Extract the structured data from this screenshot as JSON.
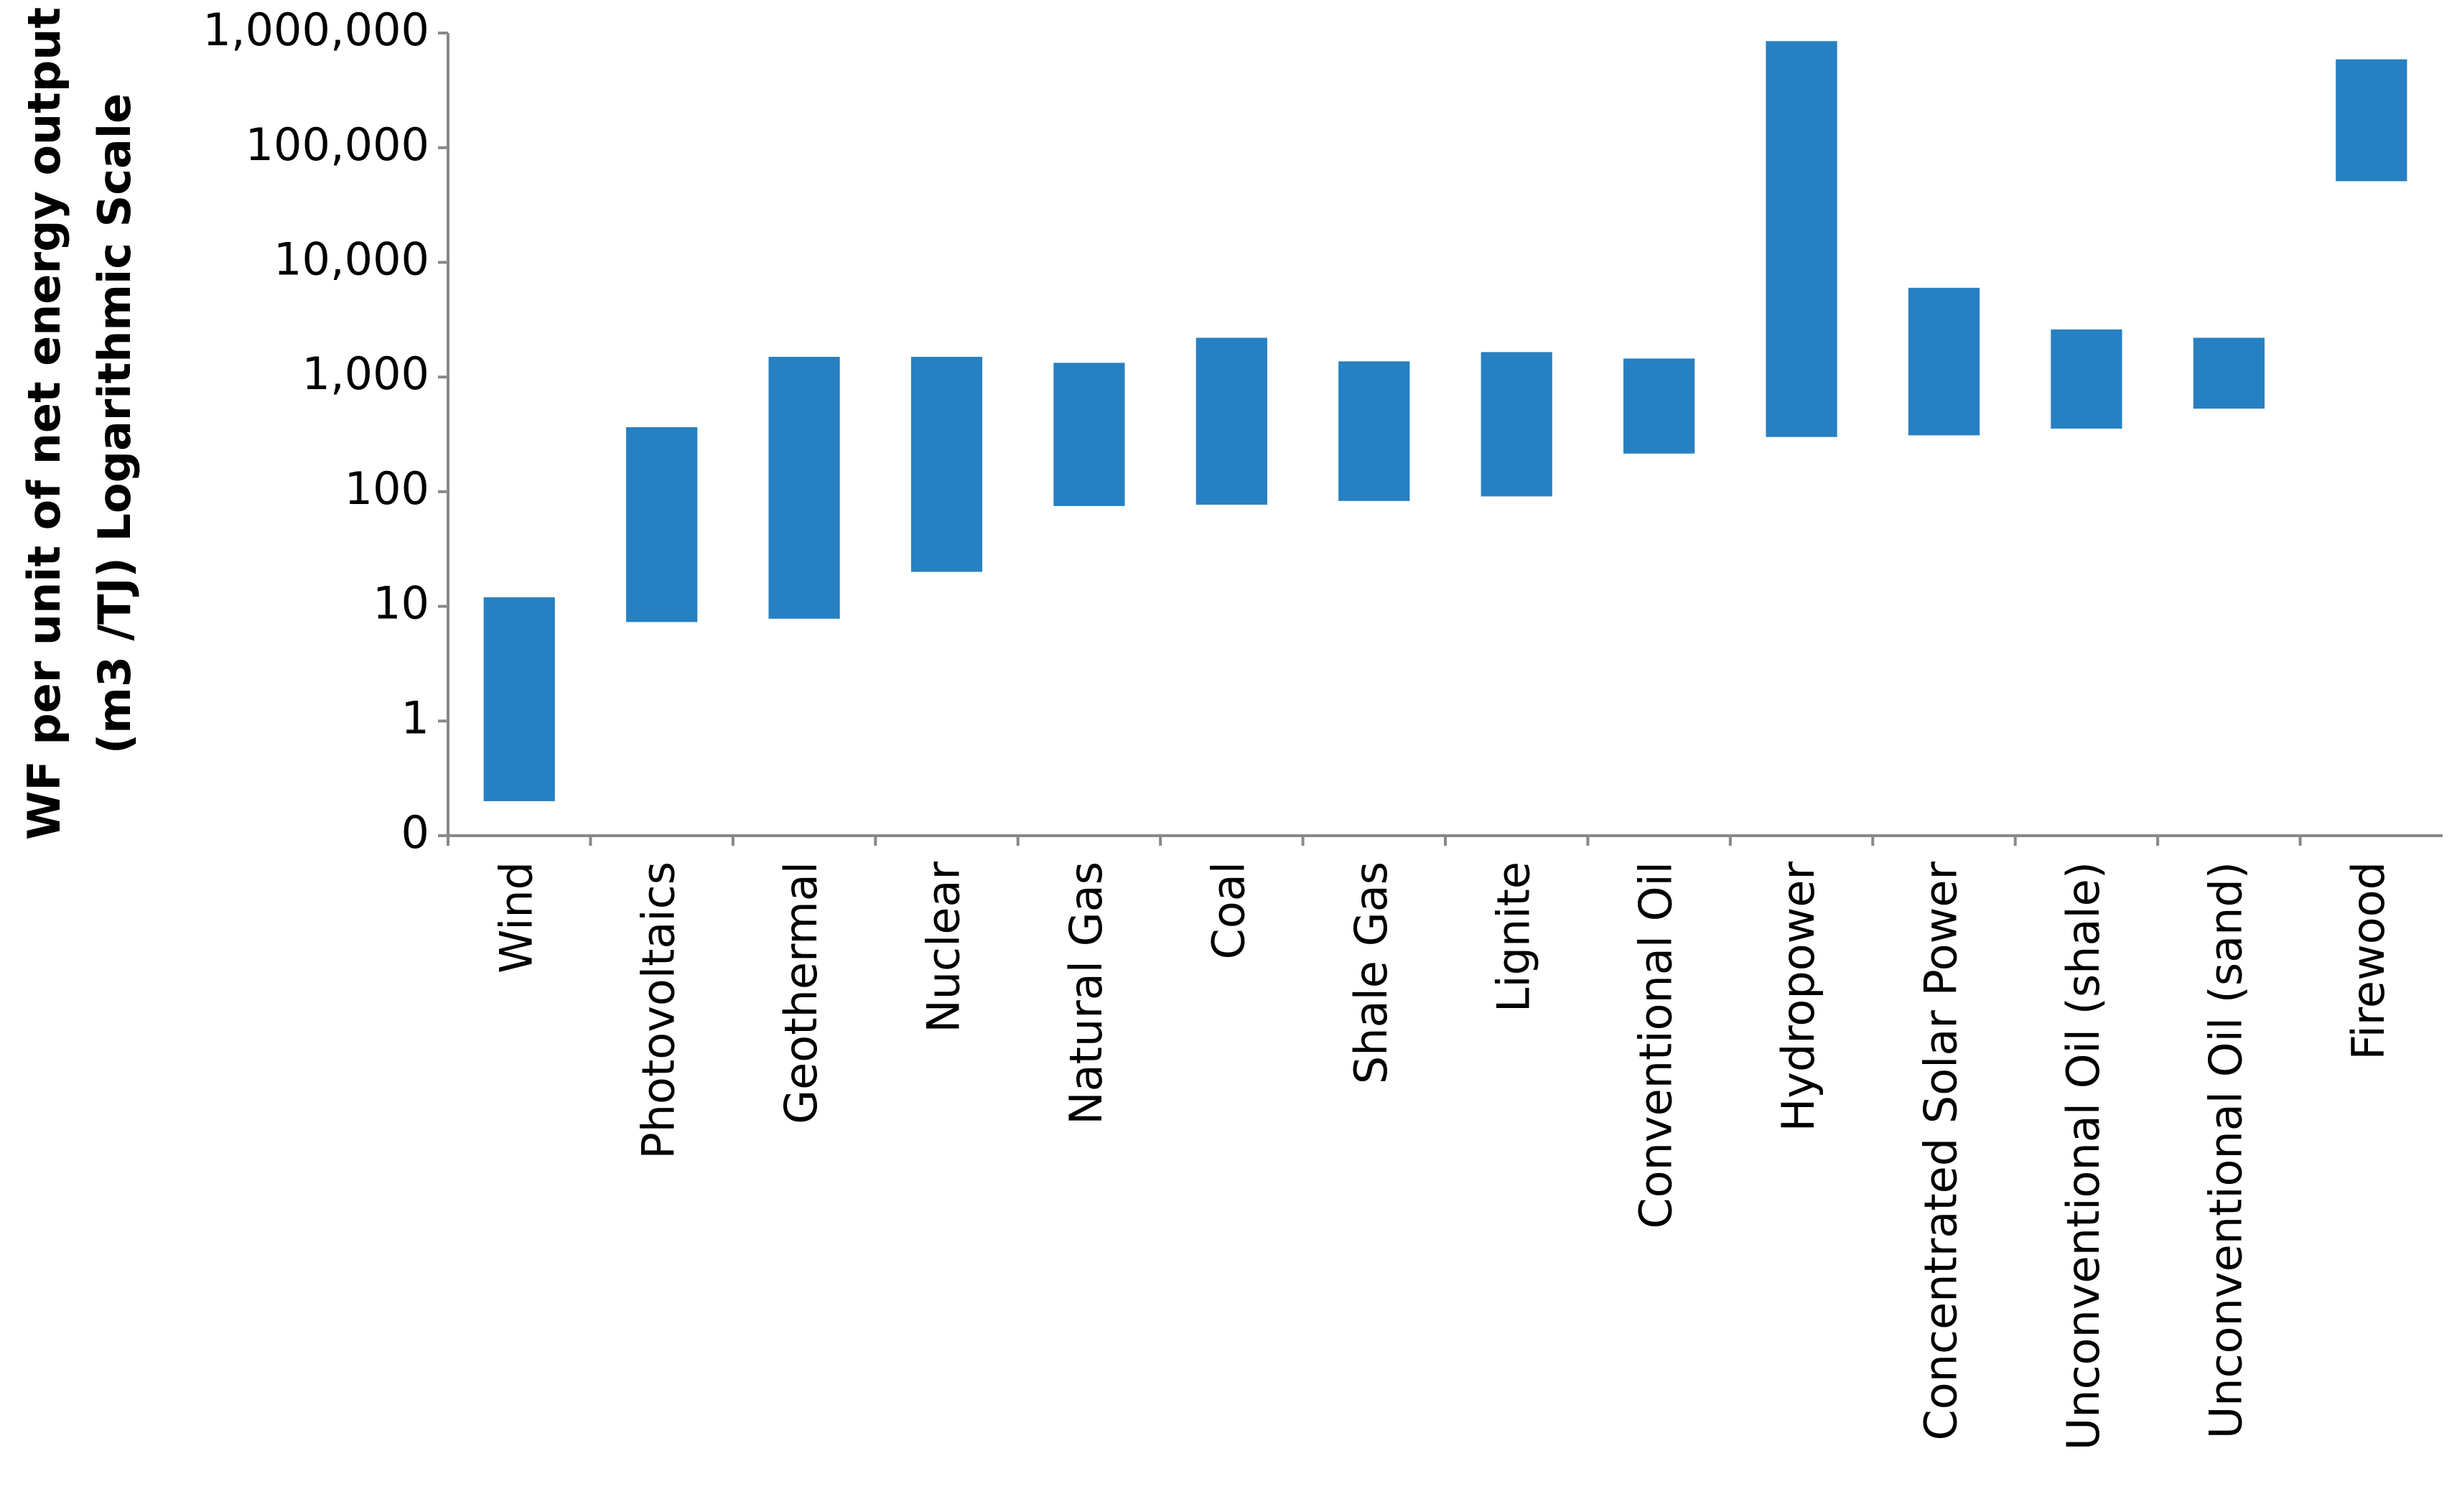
{
  "chart_data": {
    "type": "floating-bar",
    "ylabel": [
      "WF per unit of net energy output",
      "(m3 /TJ) Logarithmic Scale"
    ],
    "categories": [
      "Wind",
      "Photovoltaics",
      "Geothermal",
      "Nuclear",
      "Natural Gas",
      "Coal",
      "Shale Gas",
      "Lignite",
      "Conventional Oil",
      "Hydropower",
      "Concentrated Solar Power",
      "Unconventional Oil (shale)",
      "Unconventional Oil (sand)",
      "Firewood"
    ],
    "low": [
      0.2,
      7.3,
      7.8,
      20,
      75,
      77,
      83,
      91,
      215,
      300,
      310,
      355,
      530,
      51000
    ],
    "high": [
      12,
      365,
      1500,
      1500,
      1330,
      2200,
      1370,
      1650,
      1450,
      850000,
      6000,
      2600,
      2200,
      590000
    ],
    "color": "#2780c2",
    "log_scale": true,
    "ylim": [
      0.1,
      1000000
    ],
    "yticks": [
      {
        "value": 0.1,
        "label": "0"
      },
      1,
      10,
      100,
      {
        "value": 1000,
        "label": "1,000"
      },
      {
        "value": 10000,
        "label": "10,000"
      },
      {
        "value": 100000,
        "label": "100,000"
      },
      {
        "value": 1000000,
        "label": "1,000,000"
      }
    ]
  }
}
